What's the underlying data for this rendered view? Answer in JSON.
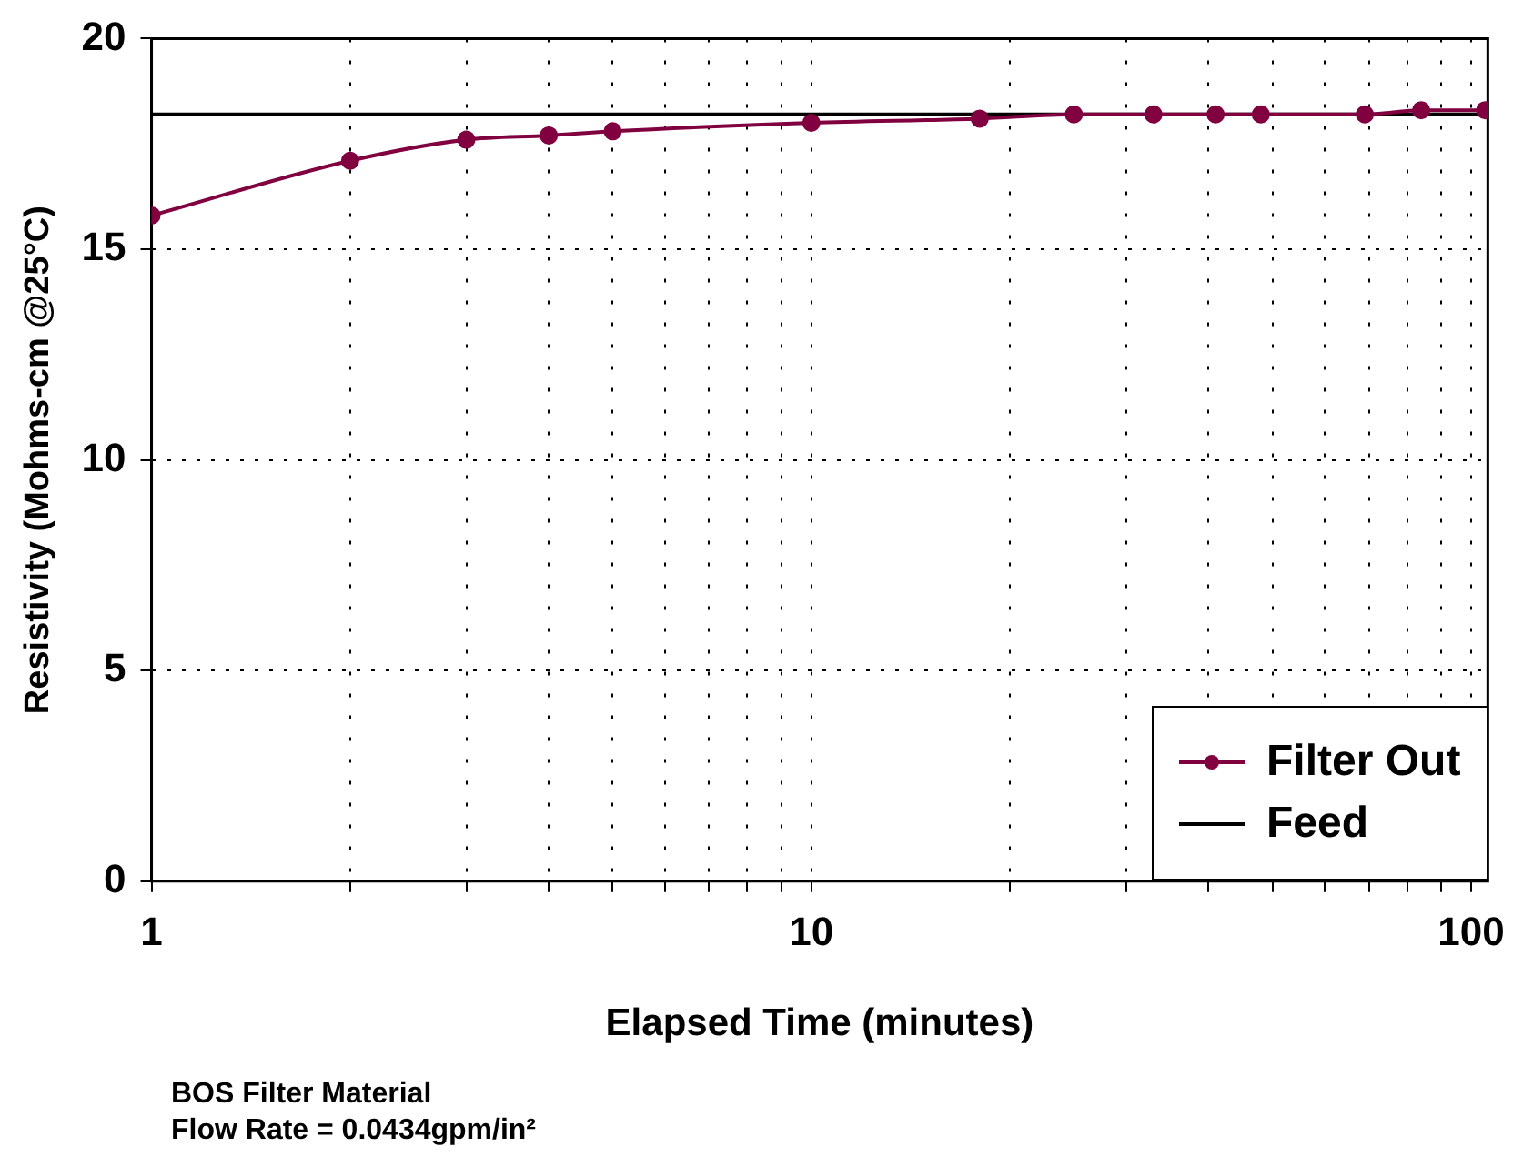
{
  "chart_data": {
    "type": "line",
    "xlabel": "Elapsed Time (minutes)",
    "ylabel": "Resistivity (Mohms-cm @25°C)",
    "log": "x",
    "xlim": [
      1,
      106
    ],
    "ylim": [
      0,
      20
    ],
    "xticks": [
      1,
      {
        "value": 2,
        "label": null
      },
      {
        "value": 3,
        "label": null
      },
      {
        "value": 4,
        "label": null
      },
      {
        "value": 5,
        "label": null
      },
      {
        "value": 6,
        "label": null
      },
      {
        "value": 7,
        "label": null
      },
      {
        "value": 8,
        "label": null
      },
      {
        "value": 9,
        "label": null
      },
      10,
      {
        "value": 20,
        "label": null
      },
      {
        "value": 30,
        "label": null
      },
      {
        "value": 40,
        "label": null
      },
      {
        "value": 50,
        "label": null
      },
      {
        "value": 60,
        "label": null
      },
      {
        "value": 70,
        "label": null
      },
      {
        "value": 80,
        "label": null
      },
      {
        "value": 90,
        "label": null
      },
      100
    ],
    "yticks": [
      0,
      5,
      10,
      15,
      20
    ],
    "grid": true,
    "legend": "bottom right",
    "line_style": "solid",
    "series": [
      {
        "name": "Filter Out",
        "color": "#800040",
        "marker": "circle",
        "x": [
          1,
          2,
          3,
          4,
          5,
          10,
          18,
          25,
          33,
          41,
          48,
          69,
          84,
          105
        ],
        "values": [
          15.8,
          17.1,
          17.6,
          17.7,
          17.8,
          18.0,
          18.1,
          18.2,
          18.2,
          18.2,
          18.2,
          18.2,
          18.3,
          18.3
        ]
      },
      {
        "name": "Feed",
        "color": "#000000",
        "marker": "none",
        "x": [
          1,
          106
        ],
        "values": [
          18.2,
          18.2
        ]
      }
    ],
    "annotations": [
      "BOS Filter Material",
      "Flow Rate = 0.0434gpm/in²"
    ]
  }
}
